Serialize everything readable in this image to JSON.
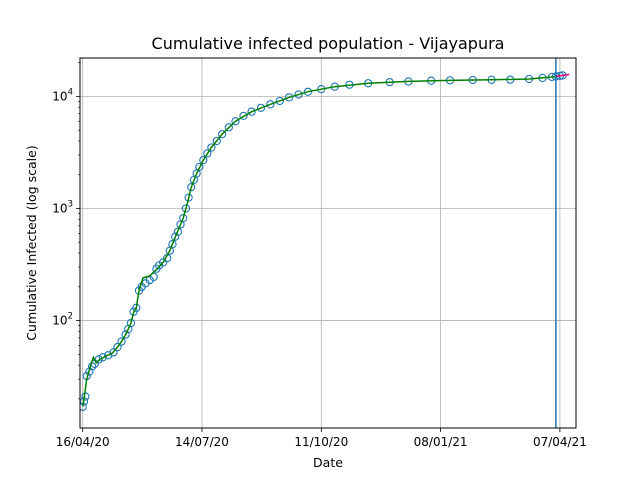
{
  "chart_data": {
    "type": "line",
    "title": "Cumulative infected population - Vijayapura",
    "xlabel": "Date",
    "ylabel": "Cumulative Infected (log scale)",
    "y_scale": "log",
    "xlim": [
      "2020-04-14",
      "2021-04-19"
    ],
    "ylim": [
      11,
      22000
    ],
    "grid": true,
    "x_ticks": [
      {
        "date": "2020-04-16",
        "label": "16/04/20"
      },
      {
        "date": "2020-07-14",
        "label": "14/07/20"
      },
      {
        "date": "2020-10-11",
        "label": "11/10/20"
      },
      {
        "date": "2021-01-08",
        "label": "08/01/21"
      },
      {
        "date": "2021-04-07",
        "label": "07/04/21"
      }
    ],
    "y_ticks": [
      {
        "value": 100,
        "base": "10",
        "exp": "2"
      },
      {
        "value": 1000,
        "base": "10",
        "exp": "3"
      },
      {
        "value": 10000,
        "base": "10",
        "exp": "4"
      }
    ],
    "vertical_line": {
      "date": "2021-04-04",
      "color": "#1f77b4"
    },
    "series": [
      {
        "style": "markers",
        "color": "#1f77b4",
        "points": [
          [
            "2020-04-16",
            17
          ],
          [
            "2020-04-17",
            19
          ],
          [
            "2020-04-18",
            21
          ],
          [
            "2020-04-19",
            32
          ],
          [
            "2020-04-21",
            35
          ],
          [
            "2020-04-23",
            39
          ],
          [
            "2020-04-25",
            41
          ],
          [
            "2020-04-28",
            45
          ],
          [
            "2020-05-01",
            47
          ],
          [
            "2020-05-05",
            49
          ],
          [
            "2020-05-09",
            52
          ],
          [
            "2020-05-12",
            58
          ],
          [
            "2020-05-15",
            65
          ],
          [
            "2020-05-18",
            75
          ],
          [
            "2020-05-20",
            84
          ],
          [
            "2020-05-22",
            95
          ],
          [
            "2020-05-24",
            120
          ],
          [
            "2020-05-26",
            130
          ],
          [
            "2020-05-28",
            185
          ],
          [
            "2020-05-30",
            200
          ],
          [
            "2020-06-02",
            215
          ],
          [
            "2020-06-05",
            230
          ],
          [
            "2020-06-08",
            245
          ],
          [
            "2020-06-10",
            290
          ],
          [
            "2020-06-12",
            310
          ],
          [
            "2020-06-15",
            330
          ],
          [
            "2020-06-18",
            360
          ],
          [
            "2020-06-20",
            420
          ],
          [
            "2020-06-22",
            480
          ],
          [
            "2020-06-24",
            560
          ],
          [
            "2020-06-26",
            620
          ],
          [
            "2020-06-28",
            720
          ],
          [
            "2020-06-30",
            820
          ],
          [
            "2020-07-02",
            1000
          ],
          [
            "2020-07-04",
            1250
          ],
          [
            "2020-07-06",
            1550
          ],
          [
            "2020-07-08",
            1800
          ],
          [
            "2020-07-10",
            2050
          ],
          [
            "2020-07-12",
            2350
          ],
          [
            "2020-07-15",
            2700
          ],
          [
            "2020-07-18",
            3100
          ],
          [
            "2020-07-21",
            3500
          ],
          [
            "2020-07-25",
            4000
          ],
          [
            "2020-07-29",
            4600
          ],
          [
            "2020-08-03",
            5300
          ],
          [
            "2020-08-08",
            6000
          ],
          [
            "2020-08-14",
            6700
          ],
          [
            "2020-08-20",
            7300
          ],
          [
            "2020-08-27",
            7900
          ],
          [
            "2020-09-03",
            8500
          ],
          [
            "2020-09-10",
            9100
          ],
          [
            "2020-09-17",
            9800
          ],
          [
            "2020-09-24",
            10400
          ],
          [
            "2020-10-01",
            11000
          ],
          [
            "2020-10-11",
            11600
          ],
          [
            "2020-10-21",
            12200
          ],
          [
            "2020-11-01",
            12700
          ],
          [
            "2020-11-15",
            13100
          ],
          [
            "2020-12-01",
            13400
          ],
          [
            "2020-12-15",
            13600
          ],
          [
            "2021-01-01",
            13800
          ],
          [
            "2021-01-15",
            13900
          ],
          [
            "2021-02-01",
            14000
          ],
          [
            "2021-02-15",
            14050
          ],
          [
            "2021-03-01",
            14100
          ],
          [
            "2021-03-15",
            14300
          ],
          [
            "2021-03-25",
            14600
          ],
          [
            "2021-04-01",
            14900
          ],
          [
            "2021-04-04",
            15050
          ],
          [
            "2021-04-07",
            15250
          ],
          [
            "2021-04-09",
            15400
          ]
        ]
      },
      {
        "style": "line",
        "color": "#008000",
        "points": [
          [
            "2020-04-16",
            17
          ],
          [
            "2020-04-17",
            20
          ],
          [
            "2020-04-19",
            30
          ],
          [
            "2020-04-22",
            40
          ],
          [
            "2020-04-24",
            47
          ],
          [
            "2020-04-26",
            42
          ],
          [
            "2020-04-29",
            45
          ],
          [
            "2020-05-03",
            48
          ],
          [
            "2020-05-08",
            51
          ],
          [
            "2020-05-12",
            58
          ],
          [
            "2020-05-15",
            65
          ],
          [
            "2020-05-18",
            75
          ],
          [
            "2020-05-20",
            84
          ],
          [
            "2020-05-22",
            95
          ],
          [
            "2020-05-24",
            118
          ],
          [
            "2020-05-26",
            130
          ],
          [
            "2020-05-28",
            185
          ],
          [
            "2020-05-31",
            240
          ],
          [
            "2020-06-05",
            250
          ],
          [
            "2020-06-10",
            285
          ],
          [
            "2020-06-15",
            330
          ],
          [
            "2020-06-20",
            420
          ],
          [
            "2020-06-25",
            590
          ],
          [
            "2020-06-30",
            820
          ],
          [
            "2020-07-03",
            1100
          ],
          [
            "2020-07-06",
            1550
          ],
          [
            "2020-07-10",
            2050
          ],
          [
            "2020-07-15",
            2700
          ],
          [
            "2020-07-21",
            3500
          ],
          [
            "2020-07-29",
            4600
          ],
          [
            "2020-08-08",
            6000
          ],
          [
            "2020-08-20",
            7300
          ],
          [
            "2020-09-03",
            8500
          ],
          [
            "2020-09-17",
            9800
          ],
          [
            "2020-10-01",
            11000
          ],
          [
            "2020-10-21",
            12200
          ],
          [
            "2020-11-15",
            13100
          ],
          [
            "2020-12-15",
            13600
          ],
          [
            "2021-01-15",
            13900
          ],
          [
            "2021-02-15",
            14050
          ],
          [
            "2021-03-15",
            14300
          ],
          [
            "2021-04-01",
            14900
          ],
          [
            "2021-04-07",
            15250
          ]
        ]
      },
      {
        "style": "line",
        "color": "#e6007e",
        "points": [
          [
            "2021-04-04",
            15050
          ],
          [
            "2021-04-07",
            15250
          ],
          [
            "2021-04-10",
            15450
          ],
          [
            "2021-04-14",
            15700
          ]
        ]
      }
    ]
  }
}
